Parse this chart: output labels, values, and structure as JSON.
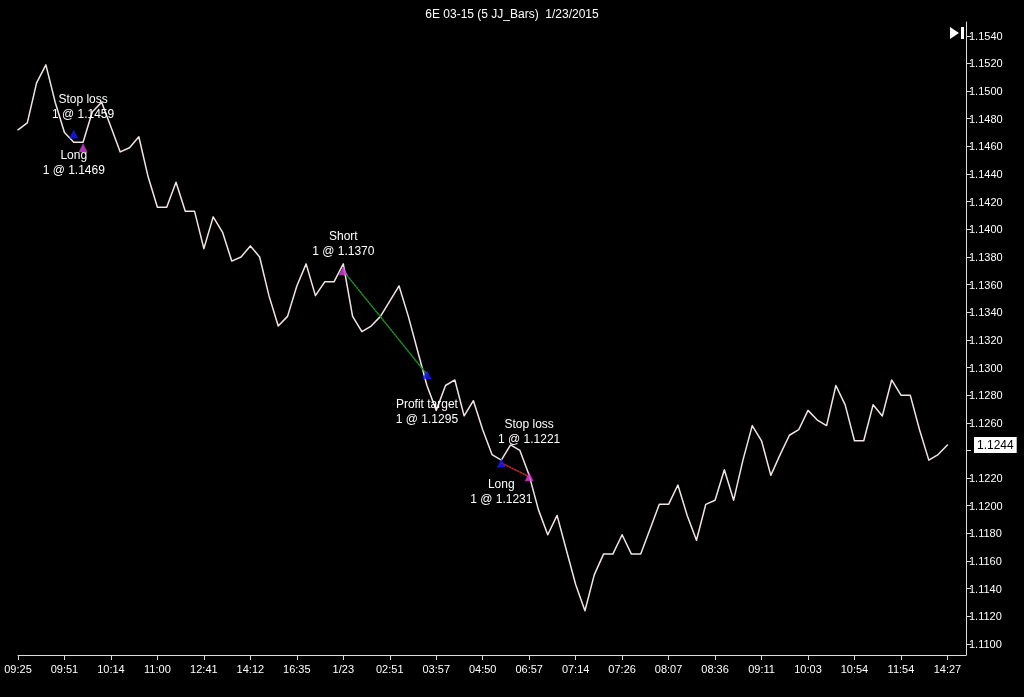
{
  "chart_data": {
    "type": "line",
    "title": "6E 03-15 (5 JJ_Bars)  1/23/2015",
    "categories": [
      "09:25",
      null,
      null,
      null,
      null,
      "09:51",
      null,
      null,
      null,
      null,
      "10:14",
      null,
      null,
      null,
      null,
      "11:00",
      null,
      null,
      null,
      null,
      "12:41",
      null,
      null,
      null,
      null,
      "14:12",
      null,
      null,
      null,
      null,
      "16:35",
      null,
      null,
      null,
      null,
      "1/23",
      null,
      null,
      null,
      null,
      "02:51",
      null,
      null,
      null,
      null,
      "03:57",
      null,
      null,
      null,
      null,
      "04:50",
      null,
      null,
      null,
      null,
      "06:57",
      null,
      null,
      null,
      null,
      "07:14",
      null,
      null,
      null,
      null,
      "07:26",
      null,
      null,
      null,
      null,
      "08:07",
      null,
      null,
      null,
      null,
      "08:36",
      null,
      null,
      null,
      null,
      "09:11",
      null,
      null,
      null,
      null,
      "10:03",
      null,
      null,
      null,
      null,
      "10:54",
      null,
      null,
      null,
      null,
      "11:54",
      null,
      null,
      null,
      null,
      "14:27",
      null,
      null
    ],
    "ylim": [
      1.1092,
      1.155
    ],
    "yticks": [
      {
        "value": 1.11,
        "label": "1.1100"
      },
      {
        "value": 1.112,
        "label": "1.1120"
      },
      {
        "value": 1.114,
        "label": "1.1140"
      },
      {
        "value": 1.116,
        "label": "1.1160"
      },
      {
        "value": 1.118,
        "label": "1.1180"
      },
      {
        "value": 1.12,
        "label": "1.1200"
      },
      {
        "value": 1.122,
        "label": "1.1220"
      },
      {
        "value": 1.124,
        "label": null
      },
      {
        "value": 1.126,
        "label": "1.1260"
      },
      {
        "value": 1.128,
        "label": "1.1280"
      },
      {
        "value": 1.13,
        "label": "1.1300"
      },
      {
        "value": 1.132,
        "label": "1.1320"
      },
      {
        "value": 1.134,
        "label": "1.1340"
      },
      {
        "value": 1.136,
        "label": "1.1360"
      },
      {
        "value": 1.138,
        "label": "1.1380"
      },
      {
        "value": 1.14,
        "label": "1.1400"
      },
      {
        "value": 1.142,
        "label": "1.1420"
      },
      {
        "value": 1.144,
        "label": "1.1440"
      },
      {
        "value": 1.146,
        "label": "1.1460"
      },
      {
        "value": 1.148,
        "label": "1.1480"
      },
      {
        "value": 1.15,
        "label": "1.1500"
      },
      {
        "value": 1.152,
        "label": "1.1520"
      },
      {
        "value": 1.154,
        "label": "1.1540"
      }
    ],
    "series": [
      {
        "color": "#f2e4e4",
        "marker": "none",
        "line_style": "solid",
        "values": [
          1.1472,
          1.1477,
          1.1506,
          1.1519,
          1.1492,
          1.147,
          1.1463,
          1.1463,
          1.1485,
          1.1492,
          1.1474,
          1.1456,
          1.1459,
          1.1467,
          1.1438,
          1.1416,
          1.1416,
          1.1434,
          1.1413,
          1.1413,
          1.1386,
          1.1409,
          1.1398,
          1.1377,
          1.138,
          1.1388,
          1.138,
          1.1352,
          1.133,
          1.1337,
          1.1359,
          1.1375,
          1.1352,
          1.1362,
          1.1362,
          1.1375,
          1.1337,
          1.1326,
          1.133,
          1.1337,
          1.1348,
          1.1359,
          1.1337,
          1.1312,
          1.1287,
          1.1269,
          1.1287,
          1.1291,
          1.1265,
          1.1276,
          1.1255,
          1.1237,
          1.1233,
          1.1244,
          1.124,
          1.1222,
          1.1197,
          1.1179,
          1.1193,
          1.1168,
          1.1143,
          1.1124,
          1.115,
          1.1165,
          1.1165,
          1.1179,
          1.1165,
          1.1165,
          1.1183,
          1.1201,
          1.1201,
          1.1215,
          1.1193,
          1.1175,
          1.1201,
          1.1204,
          1.1226,
          1.1204,
          1.1233,
          1.1258,
          1.1247,
          1.1222,
          1.1237,
          1.1251,
          1.1255,
          1.1269,
          1.1262,
          1.1258,
          1.1287,
          1.1273,
          1.1247,
          1.1247,
          1.1273,
          1.1265,
          1.1291,
          1.128,
          1.128,
          1.1255,
          1.1233,
          1.1237,
          1.1244,
          null,
          null
        ]
      },
      {
        "color": "#1f8f1f",
        "marker": "none",
        "line_style": "dotted",
        "values": [
          null,
          null,
          null,
          null,
          null,
          null,
          null,
          null,
          null,
          null,
          null,
          null,
          null,
          null,
          null,
          null,
          null,
          null,
          null,
          null,
          null,
          null,
          null,
          null,
          null,
          null,
          null,
          null,
          null,
          null,
          null,
          null,
          null,
          null,
          null,
          1.137,
          null,
          null,
          null,
          null,
          null,
          null,
          null,
          null,
          1.1295,
          null,
          null,
          null,
          null,
          null,
          null,
          null,
          null,
          null,
          null,
          null,
          null,
          null,
          null,
          null,
          null,
          null,
          null,
          null,
          null,
          null,
          null,
          null,
          null,
          null,
          null,
          null,
          null,
          null,
          null,
          null,
          null,
          null,
          null,
          null,
          null,
          null,
          null,
          null,
          null,
          null,
          null,
          null,
          null,
          null,
          null,
          null,
          null,
          null,
          null,
          null,
          null,
          null,
          null,
          null,
          null,
          null,
          null
        ]
      },
      {
        "color": "#c42626",
        "marker": "none",
        "line_style": "dotted",
        "values": [
          null,
          null,
          null,
          null,
          null,
          null,
          null,
          null,
          null,
          null,
          null,
          null,
          null,
          null,
          null,
          null,
          null,
          null,
          null,
          null,
          null,
          null,
          null,
          null,
          null,
          null,
          null,
          null,
          null,
          null,
          null,
          null,
          null,
          null,
          null,
          null,
          null,
          null,
          null,
          null,
          null,
          null,
          null,
          null,
          null,
          null,
          null,
          null,
          null,
          null,
          null,
          null,
          1.1231,
          null,
          null,
          1.1221,
          null,
          null,
          null,
          null,
          null,
          null,
          null,
          null,
          null,
          null,
          null,
          null,
          null,
          null,
          null,
          null,
          null,
          null,
          null,
          null,
          null,
          null,
          null,
          null,
          null,
          null,
          null,
          null,
          null,
          null,
          null,
          null,
          null,
          null,
          null,
          null,
          null,
          null,
          null,
          null,
          null,
          null,
          null,
          null,
          null,
          null,
          null
        ]
      },
      {
        "type": "scatter",
        "marker": "triangle",
        "values": [
          null,
          null,
          null,
          null,
          null,
          null,
          1.1469,
          1.1459,
          null,
          null,
          null,
          null,
          null,
          null,
          null,
          null,
          null,
          null,
          null,
          null,
          null,
          null,
          null,
          null,
          null,
          null,
          null,
          null,
          null,
          null,
          null,
          null,
          null,
          null,
          null,
          1.137,
          null,
          null,
          null,
          null,
          null,
          null,
          null,
          null,
          1.1295,
          null,
          null,
          null,
          null,
          null,
          null,
          null,
          1.1231,
          null,
          null,
          1.1221,
          null,
          null,
          null,
          null,
          null,
          null,
          null,
          null,
          null,
          null,
          null,
          null,
          null,
          null,
          null,
          null,
          null,
          null,
          null,
          null,
          null,
          null,
          null,
          null,
          null,
          null,
          null,
          null,
          null,
          null,
          null,
          null,
          null,
          null,
          null,
          null,
          null,
          null,
          null,
          null,
          null,
          null,
          null,
          null,
          null,
          null,
          null
        ],
        "colors": [
          null,
          null,
          null,
          null,
          null,
          null,
          "#1a1aff",
          "#e040e0",
          null,
          null,
          null,
          null,
          null,
          null,
          null,
          null,
          null,
          null,
          null,
          null,
          null,
          null,
          null,
          null,
          null,
          null,
          null,
          null,
          null,
          null,
          null,
          null,
          null,
          null,
          null,
          "#e040e0",
          null,
          null,
          null,
          null,
          null,
          null,
          null,
          null,
          "#1a1aff",
          null,
          null,
          null,
          null,
          null,
          null,
          null,
          "#1a1aff",
          null,
          null,
          "#e040e0",
          null,
          null,
          null,
          null,
          null,
          null,
          null,
          null,
          null,
          null,
          null,
          null,
          null,
          null,
          null,
          null,
          null,
          null,
          null,
          null,
          null,
          null,
          null,
          null,
          null,
          null,
          null,
          null,
          null,
          null,
          null,
          null,
          null,
          null,
          null,
          null,
          null,
          null,
          null,
          null,
          null,
          null,
          null,
          null,
          null,
          null,
          null
        ]
      }
    ],
    "annotations": [
      "Long\n1 @ 1.1469",
      "Stop loss\n1 @ 1.1459",
      "Short\n1 @ 1.1370",
      "Profit target\n1 @ 1.1295",
      "Long\n1 @ 1.1231",
      "Stop loss\n1 @ 1.1221",
      "1.1244"
    ]
  }
}
